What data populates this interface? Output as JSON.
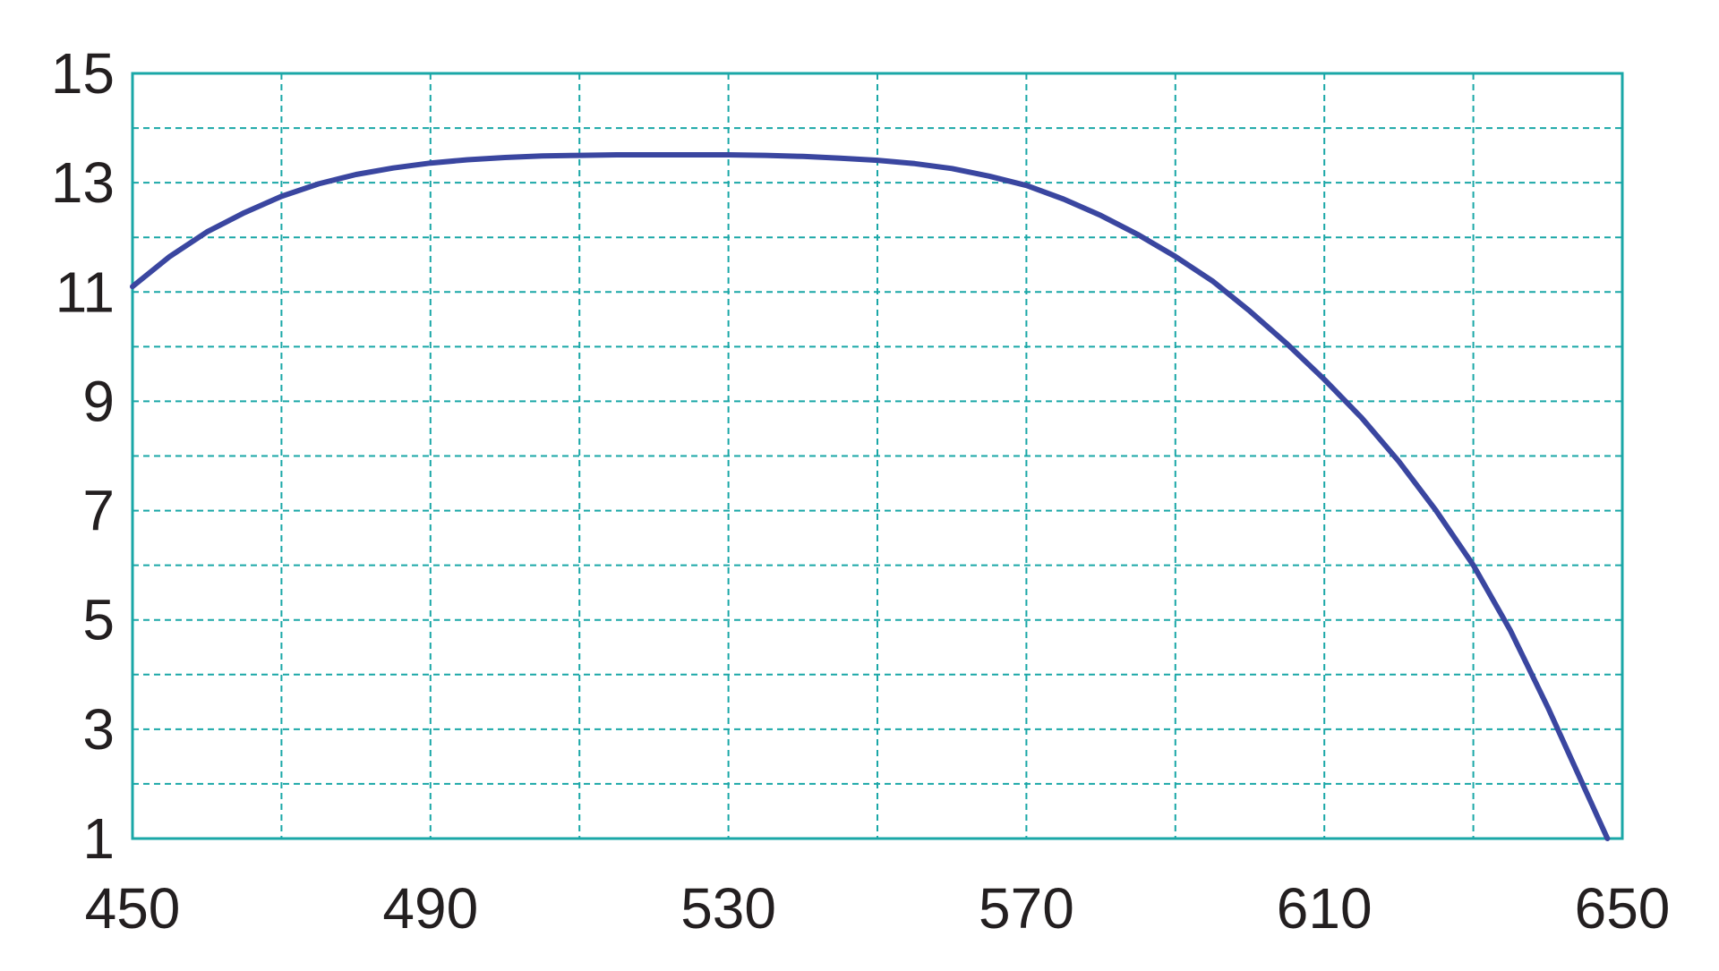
{
  "chart_data": {
    "type": "line",
    "title": "",
    "xlabel": "",
    "ylabel": "",
    "xlim": [
      450,
      650
    ],
    "ylim": [
      1,
      15
    ],
    "x_ticks": [
      450,
      490,
      530,
      570,
      610,
      650
    ],
    "y_ticks": [
      1,
      3,
      5,
      7,
      9,
      11,
      13,
      15
    ],
    "x_grid_step": 20,
    "y_grid_step": 1,
    "grid": true,
    "legend": "none",
    "colors": {
      "grid": "#1aa7a7",
      "frame": "#1aa7a7",
      "line": "#3a46a0",
      "text": "#231f20"
    },
    "series": [
      {
        "x": [
          450,
          455,
          460,
          465,
          470,
          475,
          480,
          485,
          490,
          495,
          500,
          505,
          510,
          515,
          520,
          525,
          530,
          535,
          540,
          545,
          550,
          555,
          560,
          565,
          570,
          575,
          580,
          585,
          590,
          595,
          600,
          605,
          610,
          615,
          620,
          625,
          630,
          635,
          640,
          645,
          648
        ],
        "values": [
          11.1,
          11.65,
          12.1,
          12.45,
          12.75,
          12.98,
          13.15,
          13.27,
          13.36,
          13.42,
          13.46,
          13.49,
          13.5,
          13.51,
          13.51,
          13.51,
          13.51,
          13.5,
          13.48,
          13.45,
          13.41,
          13.35,
          13.26,
          13.12,
          12.95,
          12.7,
          12.4,
          12.05,
          11.65,
          11.2,
          10.65,
          10.05,
          9.4,
          8.7,
          7.9,
          7.0,
          6.0,
          4.8,
          3.4,
          1.9,
          1.0
        ]
      }
    ]
  }
}
